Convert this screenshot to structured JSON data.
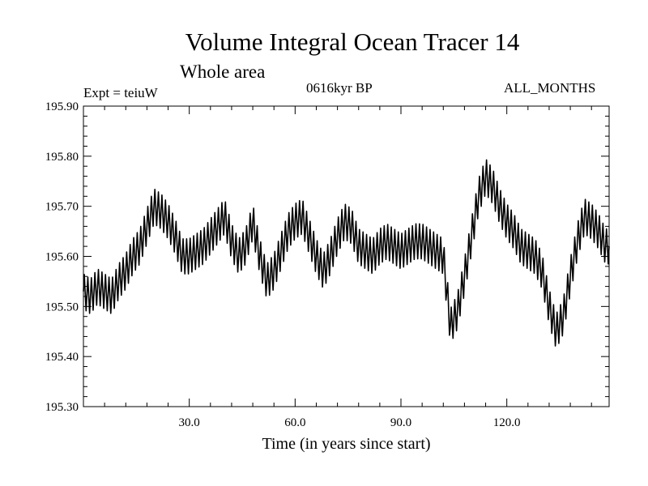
{
  "chart_data": {
    "type": "line",
    "title": "Volume Integral Ocean Tracer 14",
    "subtitle": "Whole area",
    "annotations": {
      "experiment": "Expt = teiuW",
      "period": "0616kyr BP",
      "months": "ALL_MONTHS"
    },
    "xlabel": "Time (in years since start)",
    "ylabel": "",
    "xlim": [
      0,
      149
    ],
    "ylim": [
      195.3,
      195.9
    ],
    "xticks": [
      30,
      60,
      90,
      120
    ],
    "xtick_labels": [
      "30.0",
      "60.0",
      "90.0",
      "120.0"
    ],
    "yticks": [
      195.3,
      195.4,
      195.5,
      195.6,
      195.7,
      195.8,
      195.9
    ],
    "ytick_labels": [
      "195.30",
      "195.40",
      "195.50",
      "195.60",
      "195.70",
      "195.80",
      "195.90"
    ],
    "x_minor_step": 6,
    "y_minor_step": 0.02,
    "line_color": "#000000",
    "series": [
      {
        "name": "Volume Integral Ocean Tracer 14",
        "x": [
          0,
          2,
          4,
          6,
          8,
          10,
          12,
          14,
          16,
          18,
          20,
          22,
          24,
          26,
          28,
          30,
          32,
          34,
          36,
          38,
          40,
          42,
          44,
          46,
          48,
          50,
          52,
          54,
          56,
          58,
          60,
          62,
          64,
          66,
          68,
          70,
          72,
          74,
          76,
          78,
          80,
          82,
          84,
          86,
          88,
          90,
          92,
          94,
          96,
          98,
          100,
          102,
          104,
          106,
          108,
          110,
          112,
          114,
          116,
          118,
          120,
          122,
          124,
          126,
          128,
          130,
          132,
          134,
          136,
          138,
          140,
          142,
          144,
          146,
          148,
          149
        ],
        "values": [
          195.53,
          195.52,
          195.54,
          195.53,
          195.52,
          195.55,
          195.57,
          195.6,
          195.62,
          195.66,
          195.7,
          195.69,
          195.67,
          195.64,
          195.6,
          195.6,
          195.61,
          195.62,
          195.64,
          195.66,
          195.68,
          195.63,
          195.6,
          195.62,
          195.67,
          195.6,
          195.55,
          195.57,
          195.61,
          195.65,
          195.67,
          195.68,
          195.64,
          195.6,
          195.57,
          195.6,
          195.64,
          195.67,
          195.66,
          195.62,
          195.61,
          195.6,
          195.62,
          195.63,
          195.62,
          195.61,
          195.62,
          195.63,
          195.63,
          195.62,
          195.61,
          195.6,
          195.46,
          195.49,
          195.56,
          195.64,
          195.72,
          195.76,
          195.74,
          195.7,
          195.67,
          195.65,
          195.62,
          195.61,
          195.6,
          195.57,
          195.5,
          195.45,
          195.48,
          195.56,
          195.63,
          195.68,
          195.67,
          195.65,
          195.62,
          195.62
        ]
      }
    ],
    "annual_cycle_amplitude": 0.035
  }
}
